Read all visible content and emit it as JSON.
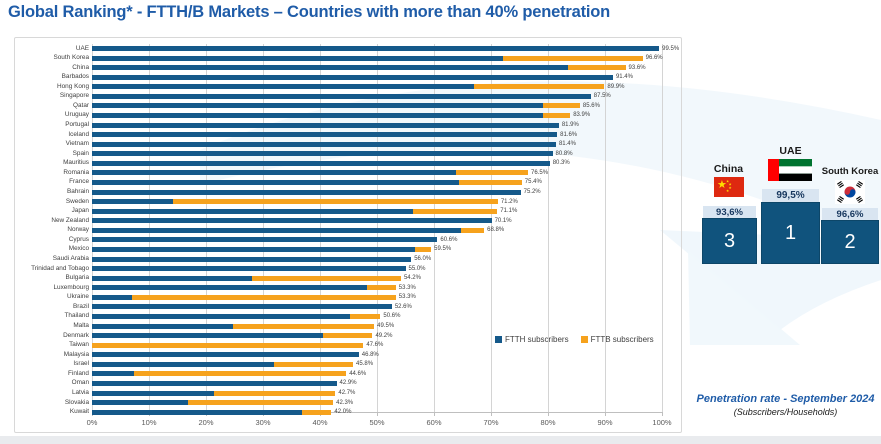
{
  "title": "Global Ranking* - FTTH/B Markets – Countries with more than 40% penetration",
  "chart_data": {
    "type": "bar",
    "orientation": "horizontal",
    "stacked": true,
    "unit": "percent of households",
    "xlim": [
      0,
      100
    ],
    "x_ticks": [
      "0%",
      "10%",
      "20%",
      "30%",
      "40%",
      "50%",
      "60%",
      "70%",
      "80%",
      "90%",
      "100%"
    ],
    "grid": true,
    "legend_position": "inside-lower-right",
    "legend": [
      {
        "label": "FTTH subscribers",
        "color": "#15598a"
      },
      {
        "label": "FTTB subscribers",
        "color": "#f6a21d"
      }
    ],
    "categories": [
      "UAE",
      "South Korea",
      "China",
      "Barbados",
      "Hong Kong",
      "Singapore",
      "Qatar",
      "Uruguay",
      "Portugal",
      "Iceland",
      "Vietnam",
      "Spain",
      "Mauritius",
      "Romania",
      "France",
      "Bahrain",
      "Sweden",
      "Japan",
      "New Zealand",
      "Norway",
      "Cyprus",
      "Mexico",
      "Saudi Arabia",
      "Trinidad and Tobago",
      "Bulgaria",
      "Luxembourg",
      "Ukraine",
      "Brazil",
      "Thailand",
      "Malta",
      "Denmark",
      "Taiwan",
      "Malaysia",
      "Israel",
      "Finland",
      "Oman",
      "Latvia",
      "Slovakia",
      "Kuwait"
    ],
    "series": [
      {
        "name": "FTTH subscribers",
        "values": [
          99.5,
          72.1,
          83.5,
          91.4,
          67.0,
          87.5,
          79.1,
          79.2,
          81.9,
          81.6,
          81.4,
          80.8,
          80.3,
          63.9,
          64.4,
          75.2,
          14.2,
          56.4,
          70.1,
          64.7,
          60.6,
          56.7,
          56.0,
          55.0,
          28.1,
          48.2,
          7.0,
          52.6,
          45.3,
          24.7,
          40.5,
          0,
          46.8,
          32.0,
          7.3,
          42.9,
          21.4,
          16.8,
          36.8
        ]
      },
      {
        "name": "FTTB subscribers",
        "values": [
          0,
          24.5,
          10.1,
          0,
          22.9,
          0,
          6.5,
          4.7,
          0,
          0,
          0,
          0,
          0,
          12.6,
          11.0,
          0,
          57.0,
          14.7,
          0,
          4.1,
          0,
          2.8,
          0,
          0,
          26.1,
          5.1,
          46.3,
          0,
          5.3,
          24.8,
          8.7,
          47.6,
          0,
          13.8,
          37.3,
          0,
          21.3,
          25.5,
          5.2
        ]
      }
    ],
    "totals": [
      99.5,
      96.6,
      93.6,
      91.4,
      89.9,
      87.5,
      85.6,
      83.9,
      81.9,
      81.6,
      81.4,
      80.8,
      80.3,
      76.5,
      75.4,
      75.2,
      71.2,
      71.1,
      70.1,
      68.8,
      60.6,
      59.5,
      56.0,
      55.0,
      54.2,
      53.3,
      53.3,
      52.6,
      50.6,
      49.5,
      49.2,
      47.6,
      46.8,
      45.8,
      44.6,
      42.9,
      42.7,
      42.3,
      42.0
    ],
    "total_labels": [
      "99.5%",
      "96.6%",
      "93.6%",
      "91.4%",
      "89.9%",
      "87.5%",
      "85.6%",
      "83.9%",
      "81.9%",
      "81.6%",
      "81.4%",
      "80.8%",
      "80.3%",
      "76.5%",
      "75.4%",
      "75.2%",
      "71.2%",
      "71.1%",
      "70.1%",
      "68.8%",
      "60.6%",
      "59.5%",
      "56.0%",
      "55.0%",
      "54.2%",
      "53.3%",
      "53.3%",
      "52.6%",
      "50.6%",
      "49.5%",
      "49.2%",
      "47.6%",
      "46.8%",
      "45.8%",
      "44.6%",
      "42.9%",
      "42.7%",
      "42.3%",
      "42.0%"
    ],
    "title": "Global Ranking* - FTTH/B Markets – Countries with more than 40% penetration"
  },
  "legend": {
    "ftth_label": "FTTH subscribers",
    "fttb_label": "FTTB subscribers"
  },
  "podium": {
    "items": [
      {
        "country": "China",
        "flag": "china-flag",
        "value": "93,6%",
        "rank": "3"
      },
      {
        "country": "UAE",
        "flag": "uae-flag",
        "value": "99,5%",
        "rank": "1"
      },
      {
        "country": "South Korea",
        "flag": "south-korea-flag",
        "value": "96,6%",
        "rank": "2"
      }
    ]
  },
  "footer": {
    "line1": "Penetration rate - September 2024",
    "line2": "(Subscribers/Households)"
  },
  "colors": {
    "ftth_blue": "#15598a",
    "fttb_orange": "#f6a21d",
    "title_blue": "#1f5ca8",
    "podium_blue": "#10537d",
    "podium_band": "#d9e5f1"
  }
}
